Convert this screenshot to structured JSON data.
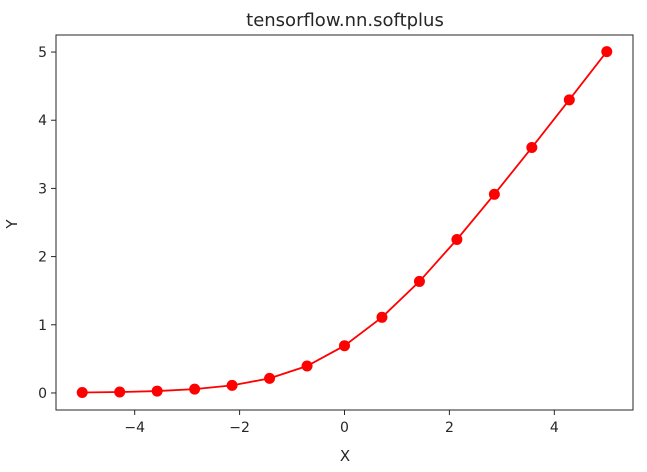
{
  "chart_data": {
    "type": "line",
    "title": "tensorflow.nn.softplus",
    "xlabel": "X",
    "ylabel": "Y",
    "xlim": [
      -5.5,
      5.5
    ],
    "ylim": [
      -0.25,
      5.25
    ],
    "xticks": [
      -4,
      -2,
      0,
      2,
      4
    ],
    "xtick_labels": [
      "−4",
      "−2",
      "0",
      "2",
      "4"
    ],
    "yticks": [
      0,
      1,
      2,
      3,
      4,
      5
    ],
    "ytick_labels": [
      "0",
      "1",
      "2",
      "3",
      "4",
      "5"
    ],
    "grid": false,
    "series": [
      {
        "color": "#ff0000",
        "marker": "circle",
        "x": [
          -5,
          -4.2857,
          -3.5714,
          -2.8571,
          -2.1429,
          -1.4286,
          -0.7143,
          0,
          0.7143,
          1.4286,
          2.1429,
          2.8571,
          3.5714,
          4.2857,
          5
        ],
        "y": [
          0.0067,
          0.0136,
          0.0277,
          0.0558,
          0.1107,
          0.2143,
          0.3953,
          0.6931,
          1.1096,
          1.6357,
          2.251,
          2.9135,
          3.5994,
          4.2994,
          5.0067
        ]
      }
    ]
  }
}
